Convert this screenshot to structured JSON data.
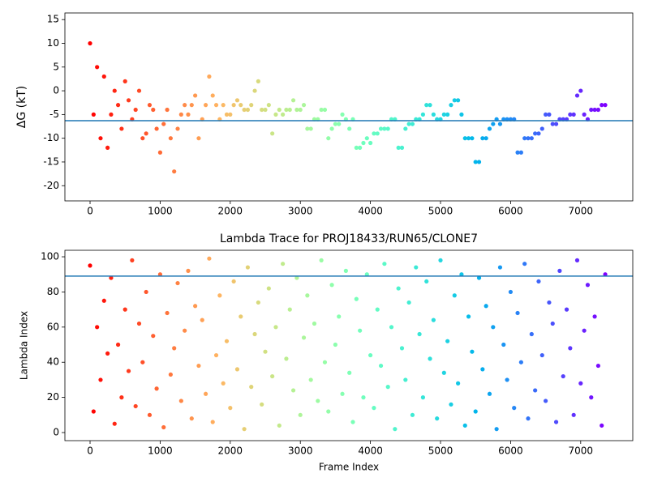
{
  "chart_data": [
    {
      "type": "scatter",
      "ylabel": "ΔG (kT)",
      "x": [
        0,
        50,
        100,
        150,
        200,
        250,
        300,
        350,
        400,
        450,
        500,
        550,
        600,
        650,
        700,
        750,
        800,
        850,
        900,
        950,
        1000,
        1050,
        1100,
        1150,
        1200,
        1250,
        1300,
        1350,
        1400,
        1450,
        1500,
        1550,
        1600,
        1650,
        1700,
        1750,
        1800,
        1850,
        1900,
        1950,
        2000,
        2050,
        2100,
        2150,
        2200,
        2250,
        2300,
        2350,
        2400,
        2450,
        2500,
        2550,
        2600,
        2650,
        2700,
        2750,
        2800,
        2850,
        2900,
        2950,
        3000,
        3050,
        3100,
        3150,
        3200,
        3250,
        3300,
        3350,
        3400,
        3450,
        3500,
        3550,
        3600,
        3650,
        3700,
        3750,
        3800,
        3850,
        3900,
        3950,
        4000,
        4050,
        4100,
        4150,
        4200,
        4250,
        4300,
        4350,
        4400,
        4450,
        4500,
        4550,
        4600,
        4650,
        4700,
        4750,
        4800,
        4850,
        4900,
        4950,
        5000,
        5050,
        5100,
        5150,
        5200,
        5250,
        5300,
        5350,
        5400,
        5450,
        5500,
        5550,
        5600,
        5650,
        5700,
        5750,
        5800,
        5850,
        5900,
        5950,
        6000,
        6050,
        6100,
        6150,
        6200,
        6250,
        6300,
        6350,
        6400,
        6450,
        6500,
        6550,
        6600,
        6650,
        6700,
        6750,
        6800,
        6850,
        6900,
        6950,
        7000,
        7050,
        7100,
        7150,
        7200,
        7250,
        7300,
        7350
      ],
      "values": [
        10,
        -5,
        5,
        -10,
        3,
        -12,
        -5,
        0,
        -3,
        -8,
        2,
        -2,
        -6,
        -4,
        0,
        -10,
        -9,
        -3,
        -4,
        -8,
        -13,
        -7,
        -4,
        -10,
        -17,
        -8,
        -5,
        -3,
        -5,
        -3,
        -1,
        -10,
        -6,
        -3,
        3,
        -1,
        -3,
        -6,
        -3,
        -5,
        -5,
        -3,
        -2,
        -3,
        -4,
        -4,
        -3,
        0,
        2,
        -4,
        -4,
        -3,
        -9,
        -5,
        -4,
        -5,
        -4,
        -4,
        -2,
        -4,
        -4,
        -3,
        -8,
        -8,
        -6,
        -6,
        -4,
        -4,
        -10,
        -8,
        -7,
        -7,
        -5,
        -6,
        -8,
        -6,
        -12,
        -12,
        -11,
        -10,
        -11,
        -9,
        -9,
        -8,
        -8,
        -8,
        -6,
        -6,
        -12,
        -12,
        -8,
        -7,
        -7,
        -6,
        -6,
        -5,
        -3,
        -3,
        -5,
        -6,
        -6,
        -5,
        -5,
        -3,
        -2,
        -2,
        -5,
        -10,
        -10,
        -10,
        -15,
        -15,
        -10,
        -10,
        -8,
        -7,
        -6,
        -7,
        -6,
        -6,
        -6,
        -6,
        -13,
        -13,
        -10,
        -10,
        -10,
        -9,
        -9,
        -8,
        -5,
        -5,
        -7,
        -7,
        -6,
        -6,
        -6,
        -5,
        -5,
        -1,
        0,
        -5,
        -6,
        -4,
        -4,
        -4,
        -3,
        -3
      ],
      "colormap": "rainbow_r",
      "hline": -6.3,
      "hline_color": "#1f77b4",
      "xlim": [
        -359,
        7743
      ],
      "xticks": [
        0,
        1000,
        2000,
        3000,
        4000,
        5000,
        6000,
        7000
      ],
      "ylim": [
        -23.2,
        16.4
      ],
      "yticks": [
        -20,
        -15,
        -10,
        -5,
        0,
        5,
        10,
        15
      ]
    },
    {
      "type": "scatter",
      "title": "Lambda Trace for PROJ18433/RUN65/CLONE7",
      "xlabel": "Frame Index",
      "ylabel": "Lambda Index",
      "x": [
        0,
        50,
        100,
        150,
        200,
        250,
        300,
        350,
        400,
        450,
        500,
        550,
        600,
        650,
        700,
        750,
        800,
        850,
        900,
        950,
        1000,
        1050,
        1100,
        1150,
        1200,
        1250,
        1300,
        1350,
        1400,
        1450,
        1500,
        1550,
        1600,
        1650,
        1700,
        1750,
        1800,
        1850,
        1900,
        1950,
        2000,
        2050,
        2100,
        2150,
        2200,
        2250,
        2300,
        2350,
        2400,
        2450,
        2500,
        2550,
        2600,
        2650,
        2700,
        2750,
        2800,
        2850,
        2900,
        2950,
        3000,
        3050,
        3100,
        3150,
        3200,
        3250,
        3300,
        3350,
        3400,
        3450,
        3500,
        3550,
        3600,
        3650,
        3700,
        3750,
        3800,
        3850,
        3900,
        3950,
        4000,
        4050,
        4100,
        4150,
        4200,
        4250,
        4300,
        4350,
        4400,
        4450,
        4500,
        4550,
        4600,
        4650,
        4700,
        4750,
        4800,
        4850,
        4900,
        4950,
        5000,
        5050,
        5100,
        5150,
        5200,
        5250,
        5300,
        5350,
        5400,
        5450,
        5500,
        5550,
        5600,
        5650,
        5700,
        5750,
        5800,
        5850,
        5900,
        5950,
        6000,
        6050,
        6100,
        6150,
        6200,
        6250,
        6300,
        6350,
        6400,
        6450,
        6500,
        6550,
        6600,
        6650,
        6700,
        6750,
        6800,
        6850,
        6900,
        6950,
        7000,
        7050,
        7100,
        7150,
        7200,
        7250,
        7300,
        7350
      ],
      "values": [
        95,
        12,
        60,
        30,
        75,
        45,
        88,
        5,
        50,
        20,
        70,
        35,
        98,
        15,
        62,
        40,
        80,
        10,
        55,
        25,
        90,
        3,
        68,
        33,
        48,
        85,
        18,
        58,
        92,
        8,
        72,
        38,
        64,
        22,
        99,
        6,
        44,
        78,
        28,
        52,
        14,
        86,
        36,
        66,
        2,
        94,
        26,
        56,
        74,
        16,
        46,
        82,
        32,
        60,
        4,
        96,
        42,
        70,
        24,
        88,
        10,
        54,
        78,
        30,
        62,
        18,
        98,
        40,
        12,
        84,
        50,
        66,
        22,
        92,
        34,
        6,
        76,
        58,
        20,
        90,
        44,
        14,
        70,
        38,
        96,
        26,
        60,
        2,
        82,
        48,
        30,
        74,
        10,
        94,
        56,
        20,
        86,
        42,
        64,
        8,
        98,
        34,
        52,
        16,
        78,
        28,
        90,
        4,
        66,
        46,
        12,
        88,
        36,
        72,
        22,
        60,
        2,
        94,
        50,
        30,
        80,
        14,
        68,
        40,
        96,
        8,
        56,
        24,
        86,
        44,
        18,
        74,
        62,
        6,
        92,
        32,
        70,
        48,
        10,
        98,
        28,
        58,
        84,
        20,
        66,
        38,
        4,
        90
      ],
      "colormap": "rainbow_r",
      "hline": 89,
      "hline_color": "#1f77b4",
      "xlim": [
        -359,
        7743
      ],
      "xticks": [
        0,
        1000,
        2000,
        3000,
        4000,
        5000,
        6000,
        7000
      ],
      "ylim": [
        -4.6,
        103.7
      ],
      "yticks": [
        0,
        20,
        40,
        60,
        80,
        100
      ]
    }
  ]
}
